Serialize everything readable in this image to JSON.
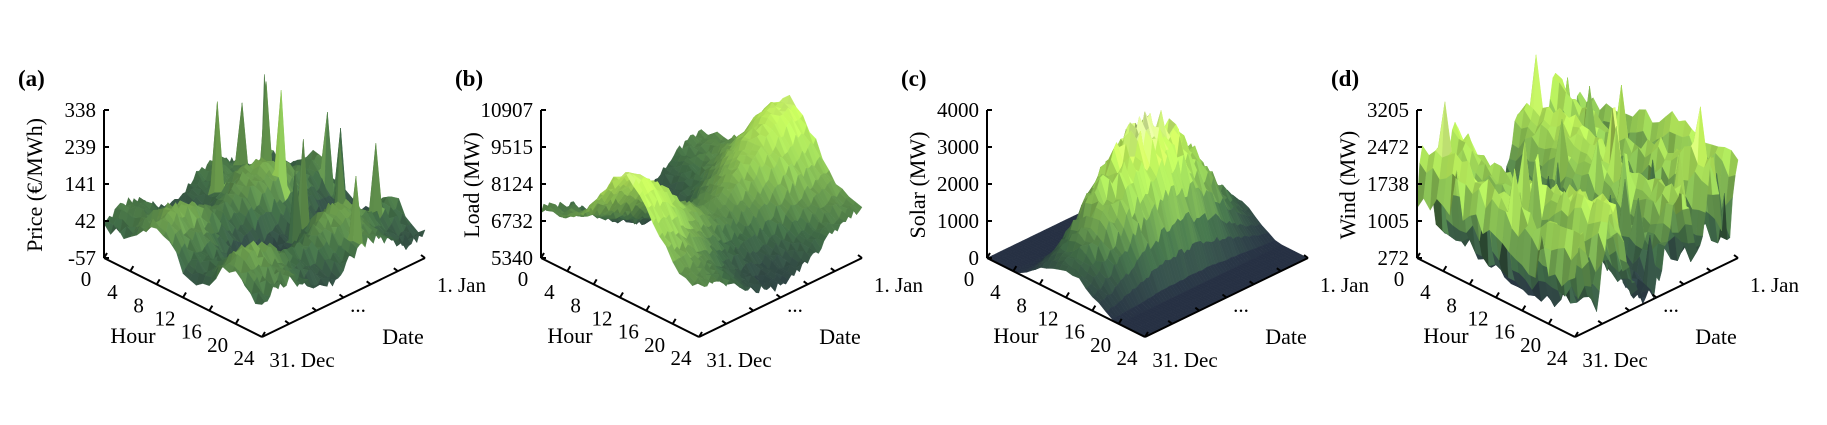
{
  "chart_data": [
    {
      "panel": "(a)",
      "type": "surface",
      "zlabel": "Price (€/MWh)",
      "zticks": [
        "338",
        "239",
        "141",
        "42",
        "-57"
      ],
      "zlim": [
        -57,
        338
      ],
      "xlabel": "Hour",
      "xticks": [
        "0",
        "4",
        "8",
        "12",
        "16",
        "20",
        "24"
      ],
      "ylabel": "Date",
      "yticks": [
        "1. Jan",
        "...",
        "31. Dec"
      ]
    },
    {
      "panel": "(b)",
      "type": "surface",
      "zlabel": "Load (MW)",
      "zticks": [
        "10907",
        "9515",
        "8124",
        "6732",
        "5340"
      ],
      "zlim": [
        5340,
        10907
      ],
      "xlabel": "Hour",
      "xticks": [
        "0",
        "4",
        "8",
        "12",
        "16",
        "20",
        "24"
      ],
      "ylabel": "Date",
      "yticks": [
        "1. Jan",
        "...",
        "31. Dec"
      ]
    },
    {
      "panel": "(c)",
      "type": "surface",
      "zlabel": "Solar (MW)",
      "zticks": [
        "4000",
        "3000",
        "2000",
        "1000",
        "0"
      ],
      "zlim": [
        0,
        4000
      ],
      "xlabel": "Hour",
      "xticks": [
        "0",
        "4",
        "8",
        "12",
        "16",
        "20",
        "24"
      ],
      "ylabel": "Date",
      "yticks": [
        "1. Jan",
        "...",
        "31. Dec"
      ]
    },
    {
      "panel": "(d)",
      "type": "surface",
      "zlabel": "Wind (MW)",
      "zticks": [
        "3205",
        "2472",
        "1738",
        "1005",
        "272"
      ],
      "zlim": [
        272,
        3205
      ],
      "xlabel": "Hour",
      "xticks": [
        "0",
        "4",
        "8",
        "12",
        "16",
        "20",
        "24"
      ],
      "ylabel": "Date",
      "yticks": [
        "1. Jan",
        "...",
        "31. Dec"
      ]
    }
  ],
  "colors": {
    "low": "#263043",
    "mid_low": "#3f6a45",
    "mid": "#8fc553",
    "mid_high": "#bff05a",
    "high": "#dcdcc0"
  }
}
